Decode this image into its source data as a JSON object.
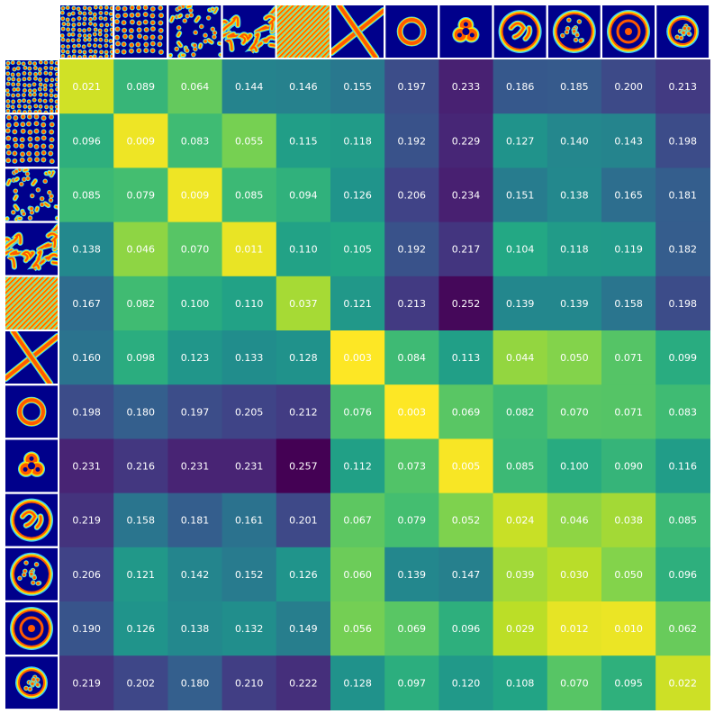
{
  "chart_data": {
    "type": "heatmap",
    "title": "",
    "xlabel": "",
    "ylabel": "",
    "colormap": "viridis",
    "value_range": [
      0.003,
      0.257
    ],
    "row_patterns": [
      "spots-dense",
      "spots-sparse",
      "mixed-spots-stripes",
      "labyrinth",
      "stripes-diagonal",
      "cross",
      "ring",
      "trefoil",
      "swirl-blob",
      "target-mesh",
      "target-rings",
      "rough-disk"
    ],
    "col_patterns": [
      "spots-dense",
      "spots-sparse",
      "mixed-spots-stripes",
      "labyrinth",
      "stripes-diagonal",
      "cross",
      "ring",
      "trefoil",
      "swirl-blob",
      "target-mesh",
      "target-rings",
      "rough-disk"
    ],
    "values": [
      [
        0.021,
        0.089,
        0.064,
        0.144,
        0.146,
        0.155,
        0.197,
        0.233,
        0.186,
        0.185,
        0.2,
        0.213
      ],
      [
        0.096,
        0.009,
        0.083,
        0.055,
        0.115,
        0.118,
        0.192,
        0.229,
        0.127,
        0.14,
        0.143,
        0.198
      ],
      [
        0.085,
        0.079,
        0.009,
        0.085,
        0.094,
        0.126,
        0.206,
        0.234,
        0.151,
        0.138,
        0.165,
        0.181
      ],
      [
        0.138,
        0.046,
        0.07,
        0.011,
        0.11,
        0.105,
        0.192,
        0.217,
        0.104,
        0.118,
        0.119,
        0.182
      ],
      [
        0.167,
        0.082,
        0.1,
        0.11,
        0.037,
        0.121,
        0.213,
        0.252,
        0.139,
        0.139,
        0.158,
        0.198
      ],
      [
        0.16,
        0.098,
        0.123,
        0.133,
        0.128,
        0.003,
        0.084,
        0.113,
        0.044,
        0.05,
        0.071,
        0.099
      ],
      [
        0.198,
        0.18,
        0.197,
        0.205,
        0.212,
        0.076,
        0.003,
        0.069,
        0.082,
        0.07,
        0.071,
        0.083
      ],
      [
        0.231,
        0.216,
        0.231,
        0.231,
        0.257,
        0.112,
        0.073,
        0.005,
        0.085,
        0.1,
        0.09,
        0.116
      ],
      [
        0.219,
        0.158,
        0.181,
        0.161,
        0.201,
        0.067,
        0.079,
        0.052,
        0.024,
        0.046,
        0.038,
        0.085
      ],
      [
        0.206,
        0.121,
        0.142,
        0.152,
        0.126,
        0.06,
        0.139,
        0.147,
        0.039,
        0.03,
        0.05,
        0.096
      ],
      [
        0.19,
        0.126,
        0.138,
        0.132,
        0.149,
        0.056,
        0.069,
        0.096,
        0.029,
        0.012,
        0.01,
        0.062
      ],
      [
        0.219,
        0.202,
        0.18,
        0.21,
        0.222,
        0.128,
        0.097,
        0.12,
        0.108,
        0.07,
        0.095,
        0.022
      ]
    ],
    "cell_labels": [
      [
        "0.021",
        "0.089",
        "0.064",
        "0.144",
        "0.146",
        "0.155",
        "0.197",
        "0.233",
        "0.186",
        "0.185",
        "0.200",
        "0.213"
      ],
      [
        "0.096",
        "0.009",
        "0.083",
        "0.055",
        "0.115",
        "0.118",
        "0.192",
        "0.229",
        "0.127",
        "0.140",
        "0.143",
        "0.198"
      ],
      [
        "0.085",
        "0.079",
        "0.009",
        "0.085",
        "0.094",
        "0.126",
        "0.206",
        "0.234",
        "0.151",
        "0.138",
        "0.165",
        "0.181"
      ],
      [
        "0.138",
        "0.046",
        "0.070",
        "0.011",
        "0.110",
        "0.105",
        "0.192",
        "0.217",
        "0.104",
        "0.118",
        "0.119",
        "0.182"
      ],
      [
        "0.167",
        "0.082",
        "0.100",
        "0.110",
        "0.037",
        "0.121",
        "0.213",
        "0.252",
        "0.139",
        "0.139",
        "0.158",
        "0.198"
      ],
      [
        "0.160",
        "0.098",
        "0.123",
        "0.133",
        "0.128",
        "0.003",
        "0.084",
        "0.113",
        "0.044",
        "0.050",
        "0.071",
        "0.099"
      ],
      [
        "0.198",
        "0.180",
        "0.197",
        "0.205",
        "0.212",
        "0.076",
        "0.003",
        "0.069",
        "0.082",
        "0.070",
        "0.071",
        "0.083"
      ],
      [
        "0.231",
        "0.216",
        "0.231",
        "0.231",
        "0.257",
        "0.112",
        "0.073",
        "0.005",
        "0.085",
        "0.100",
        "0.090",
        "0.116"
      ],
      [
        "0.219",
        "0.158",
        "0.181",
        "0.161",
        "0.201",
        "0.067",
        "0.079",
        "0.052",
        "0.024",
        "0.046",
        "0.038",
        "0.085"
      ],
      [
        "0.206",
        "0.121",
        "0.142",
        "0.152",
        "0.126",
        "0.060",
        "0.139",
        "0.147",
        "0.039",
        "0.030",
        "0.050",
        "0.096"
      ],
      [
        "0.190",
        "0.126",
        "0.138",
        "0.132",
        "0.149",
        "0.056",
        "0.069",
        "0.096",
        "0.029",
        "0.012",
        "0.010",
        "0.062"
      ],
      [
        "0.219",
        "0.202",
        "0.180",
        "0.210",
        "0.222",
        "0.128",
        "0.097",
        "0.120",
        "0.108",
        "0.070",
        "0.095",
        "0.022"
      ]
    ]
  },
  "colors": {
    "thumb_background": "#00008b",
    "label_text": "#ffffff"
  }
}
